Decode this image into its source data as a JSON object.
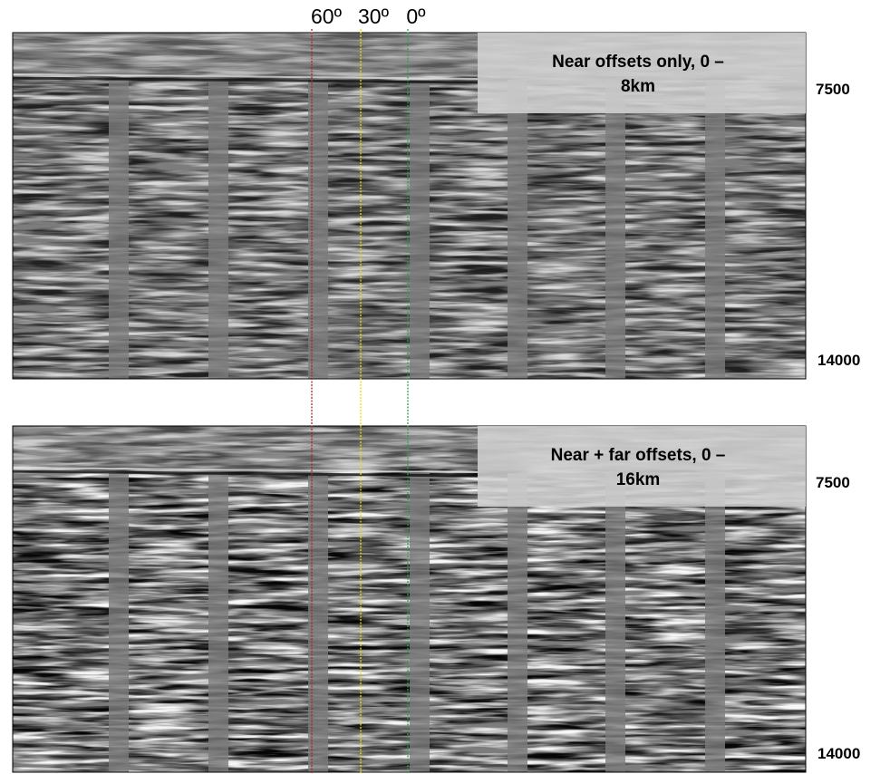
{
  "angle_labels": [
    "60º",
    "30º",
    "0º"
  ],
  "panels": [
    {
      "label_lines": [
        "Near offsets only, 0 –",
        "8km"
      ],
      "depth_top": "7500",
      "depth_bottom": "14000"
    },
    {
      "label_lines": [
        "Near + far offsets, 0 –",
        "16km"
      ],
      "depth_top": "7500",
      "depth_bottom": "14000"
    }
  ]
}
